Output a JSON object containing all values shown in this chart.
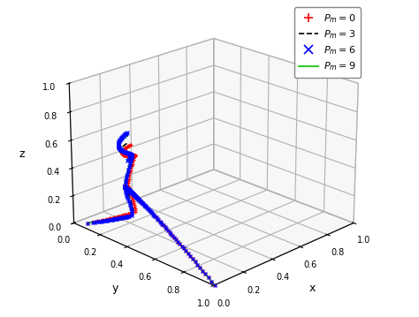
{
  "title": "",
  "xlabel": "x",
  "ylabel": "y",
  "zlabel": "z",
  "xlim": [
    0,
    1
  ],
  "ylim": [
    0,
    1
  ],
  "zlim": [
    0,
    1
  ],
  "xticks": [
    0,
    0.2,
    0.4,
    0.6,
    0.8,
    1
  ],
  "yticks": [
    0,
    0.2,
    0.4,
    0.6,
    0.8,
    1
  ],
  "zticks": [
    0,
    0.2,
    0.4,
    0.6,
    0.8,
    1
  ],
  "elev": 22,
  "azim": -135,
  "pane_color": "#f0f0f0",
  "grid_color": "#cccccc"
}
